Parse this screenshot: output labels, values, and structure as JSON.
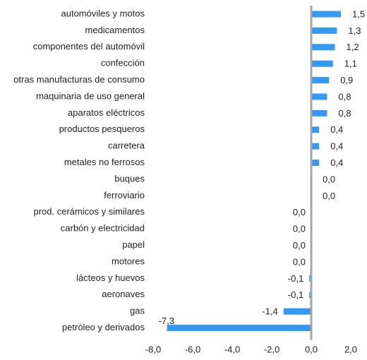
{
  "chart_data": {
    "type": "barh",
    "categories": [
      "automóviles y motos",
      "medicamentos",
      "componentes del automóvil",
      "confección",
      "otras manufacturas de consumo",
      "maquinaria de uso general",
      "aparatos eléctricos",
      "productos pesqueros",
      "carretera",
      "metales no ferrosos",
      "buques",
      "ferroviario",
      "prod. cerámicos y similares",
      "carbón y electricidad",
      "papel",
      "motores",
      "lácteos y huevos",
      "aeronaves",
      "gas",
      "petróleo y derivados"
    ],
    "values": [
      1.5,
      1.3,
      1.2,
      1.1,
      0.9,
      0.8,
      0.8,
      0.4,
      0.4,
      0.4,
      0.0,
      0.0,
      0.0,
      0.0,
      0.0,
      0.0,
      -0.1,
      -0.1,
      -1.4,
      -7.3
    ],
    "value_labels": [
      "1,5",
      "1,3",
      "1,2",
      "1,1",
      "0,9",
      "0,8",
      "0,8",
      "0,4",
      "0,4",
      "0,4",
      "0,0",
      "0,0",
      "0,0",
      "0,0",
      "0,0",
      "0,0",
      "-0,1",
      "-0,1",
      "-1,4",
      "-7,3"
    ],
    "color": "#3399f3",
    "xlim": [
      -8.0,
      2.0
    ],
    "xticks": [
      {
        "value": -8,
        "label": "-8,0"
      },
      {
        "value": -6,
        "label": "-6,0"
      },
      {
        "value": -4,
        "label": "-4,0"
      },
      {
        "value": -2,
        "label": "-2,0"
      },
      {
        "value": 0,
        "label": "0,0"
      },
      {
        "value": 2,
        "label": "2,0"
      }
    ]
  }
}
